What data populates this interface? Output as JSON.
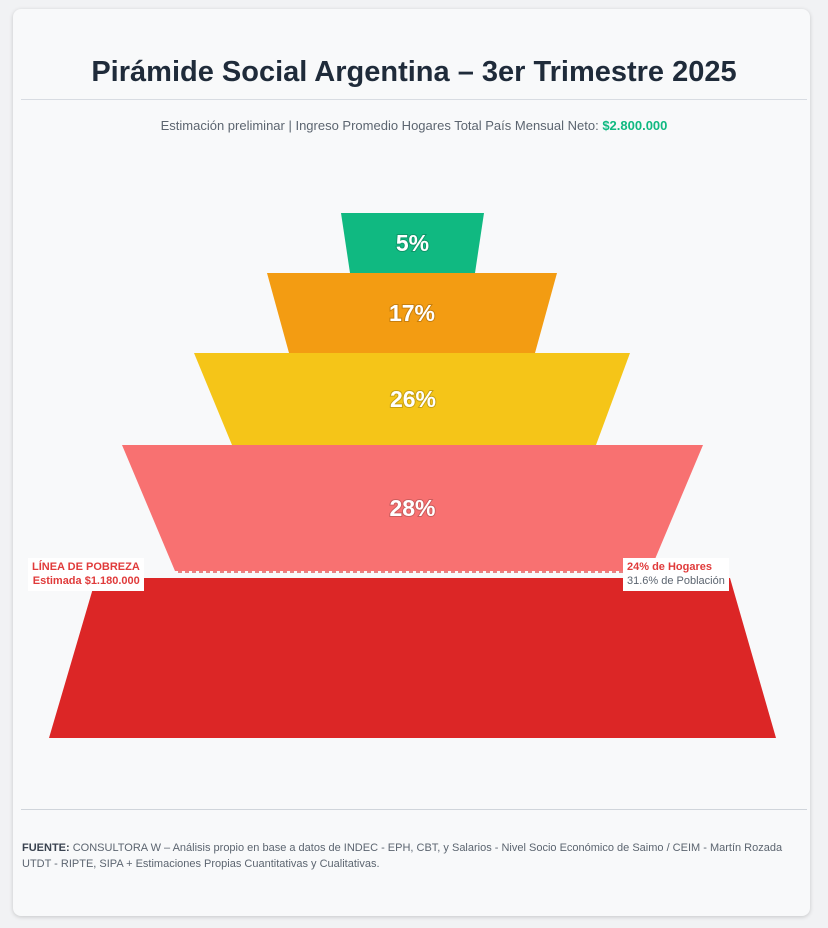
{
  "title": "Pirámide Social Argentina – 3er Trimestre 2025",
  "subtitle": {
    "text": "Estimación preliminar | Ingreso Promedio Hogares Total País Mensual Neto: ",
    "amount": "$2.800.000"
  },
  "poverty_line": {
    "label": "LÍNEA DE POBREZA",
    "estimate": "Estimada $1.180.000",
    "households": "24% de Hogares",
    "population": "31.6% de Población"
  },
  "source": {
    "label": "FUENTE:",
    "text": "CONSULTORA W – Análisis propio en base a datos de INDEC - EPH, CBT, y Salarios - Nivel Socio Económico de Saimo / CEIM - Martín Rozada UTDT - RIPTE, SIPA + Estimaciones Propias Cuantitativas y Cualitativas."
  },
  "chart_data": {
    "type": "pyramid",
    "title": "Pirámide Social Argentina – 3er Trimestre 2025",
    "levels": [
      {
        "label": "5%",
        "value": 5,
        "color": "#10b981"
      },
      {
        "label": "17%",
        "value": 17,
        "color": "#f39c12"
      },
      {
        "label": "26%",
        "value": 26,
        "color": "#f5c518"
      },
      {
        "label": "28%",
        "value": 28,
        "color": "#f87171"
      },
      {
        "label": "",
        "value": 24,
        "color": "#dc2626"
      }
    ]
  }
}
